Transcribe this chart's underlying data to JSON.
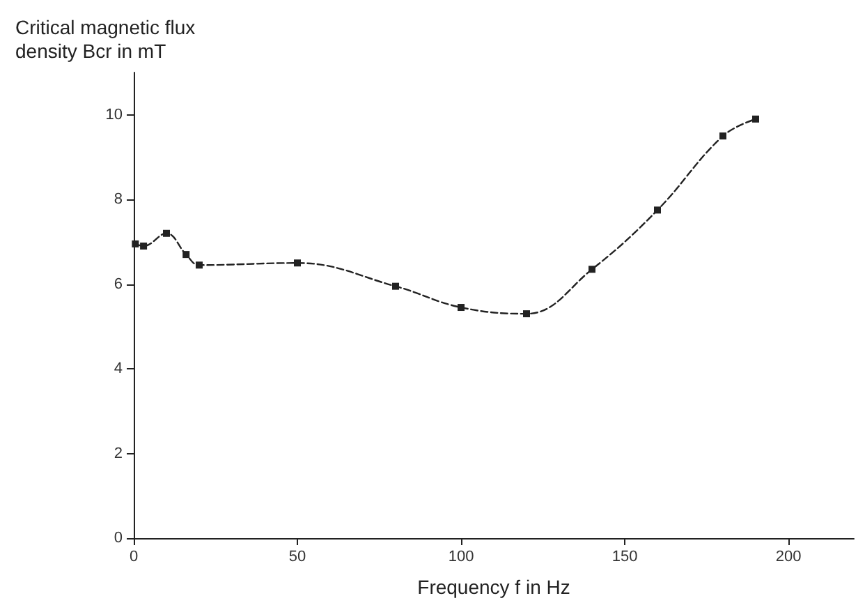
{
  "chart_data": {
    "type": "line",
    "ylabel": "Critical magnetic flux density Bcr in mT",
    "xlabel": "Frequency f in Hz",
    "x": [
      0.5,
      3,
      10,
      16,
      20,
      50,
      80,
      100,
      120,
      140,
      160,
      180,
      190
    ],
    "series": [
      {
        "color": "#222222",
        "values": [
          6.95,
          6.9,
          7.2,
          6.7,
          6.45,
          6.5,
          5.95,
          5.45,
          5.3,
          6.35,
          7.75,
          9.5,
          9.9
        ]
      }
    ],
    "xlim": [
      0,
      220
    ],
    "xticks": [
      0,
      50,
      100,
      150,
      200
    ],
    "ylim": [
      0,
      11
    ],
    "yticks": [
      0,
      2,
      4,
      6,
      8,
      10
    ],
    "marker": "square",
    "line_style": "dashed",
    "grid": false
  }
}
